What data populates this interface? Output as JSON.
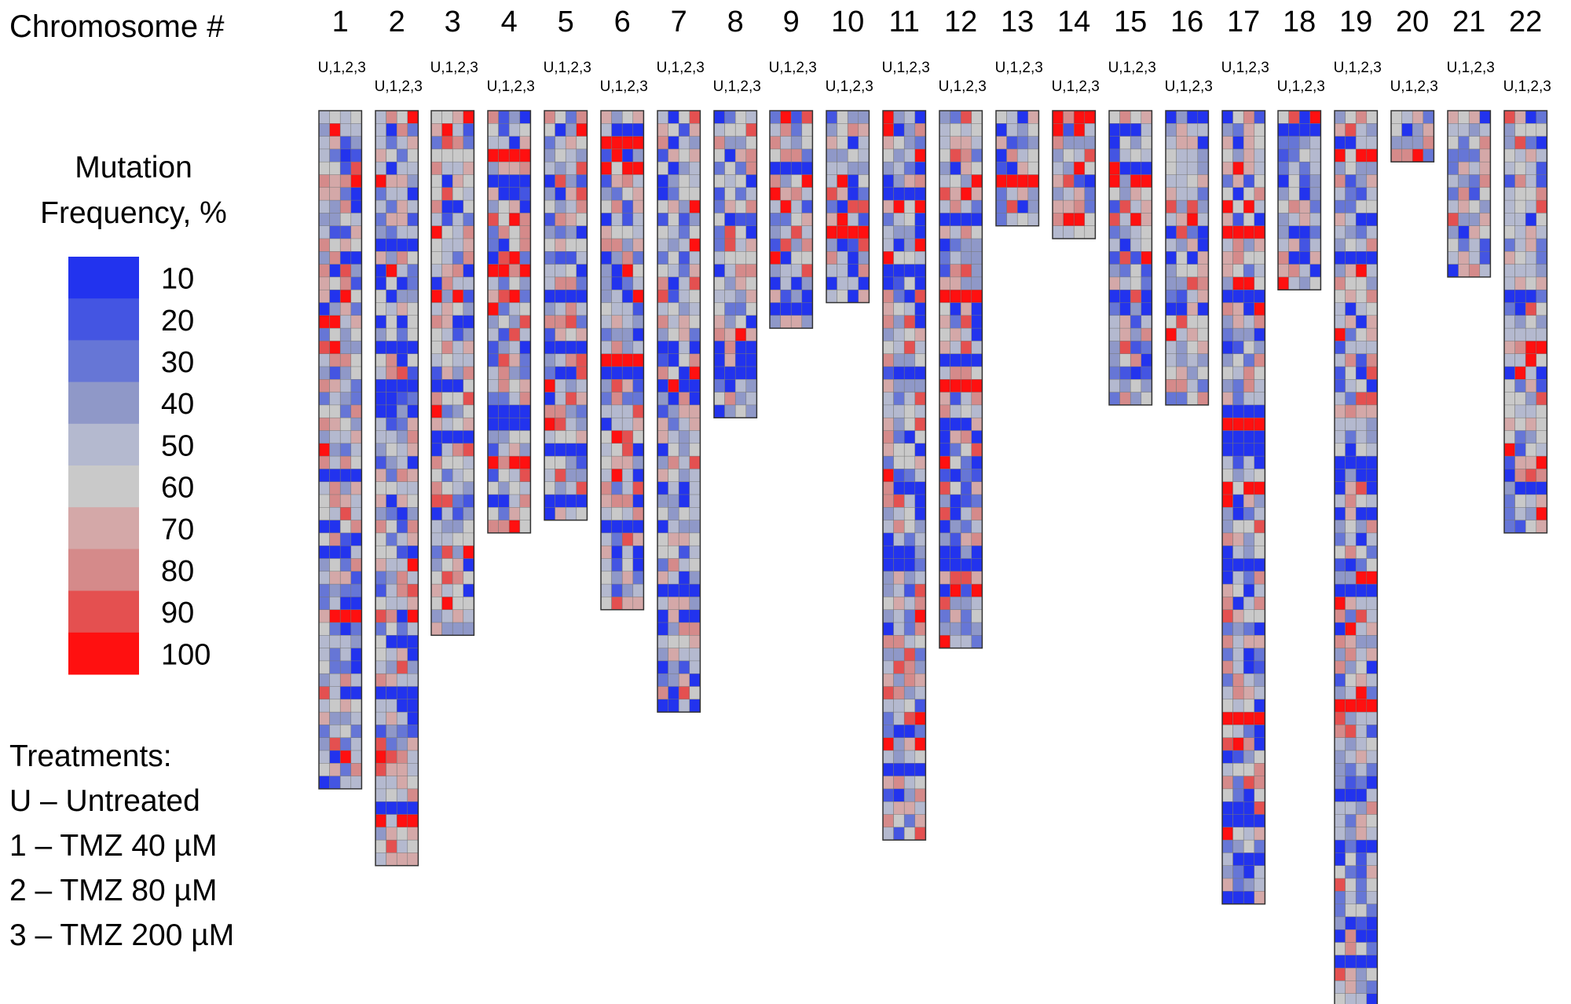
{
  "chart_data": {
    "type": "heatmap",
    "title": "",
    "row_label": "Chromosome #",
    "chromosomes": [
      "1",
      "2",
      "3",
      "4",
      "5",
      "6",
      "7",
      "8",
      "9",
      "10",
      "11",
      "12",
      "13",
      "14",
      "15",
      "16",
      "17",
      "18",
      "19",
      "20",
      "21",
      "22"
    ],
    "subcolumn_label": "U,1,2,3",
    "subcolumns": [
      "U",
      "1",
      "2",
      "3"
    ],
    "segments_per_chromosome": [
      53,
      59,
      41,
      33,
      32,
      39,
      47,
      24,
      17,
      15,
      57,
      42,
      9,
      10,
      23,
      23,
      62,
      14,
      72,
      4,
      13,
      33
    ],
    "colorbar": {
      "title": "Mutation Frequency, %",
      "ticks": [
        10,
        20,
        30,
        40,
        50,
        60,
        70,
        80,
        90,
        100
      ],
      "colors": [
        "#2233ee",
        "#4455e2",
        "#6676d6",
        "#8f98c8",
        "#b4b9cf",
        "#c9c9c9",
        "#d4a8a8",
        "#d58a8a",
        "#e45050",
        "#ff1010"
      ]
    },
    "color_scale": {
      "low": "blue",
      "mid": "grey",
      "high": "red",
      "min": 10,
      "max": 100
    }
  },
  "treatments": {
    "title": "Treatments:",
    "items": [
      "U – Untreated",
      "1 – TMZ 40 µM",
      "2 – TMZ 80 µM",
      "3 – TMZ 200 µM"
    ]
  }
}
